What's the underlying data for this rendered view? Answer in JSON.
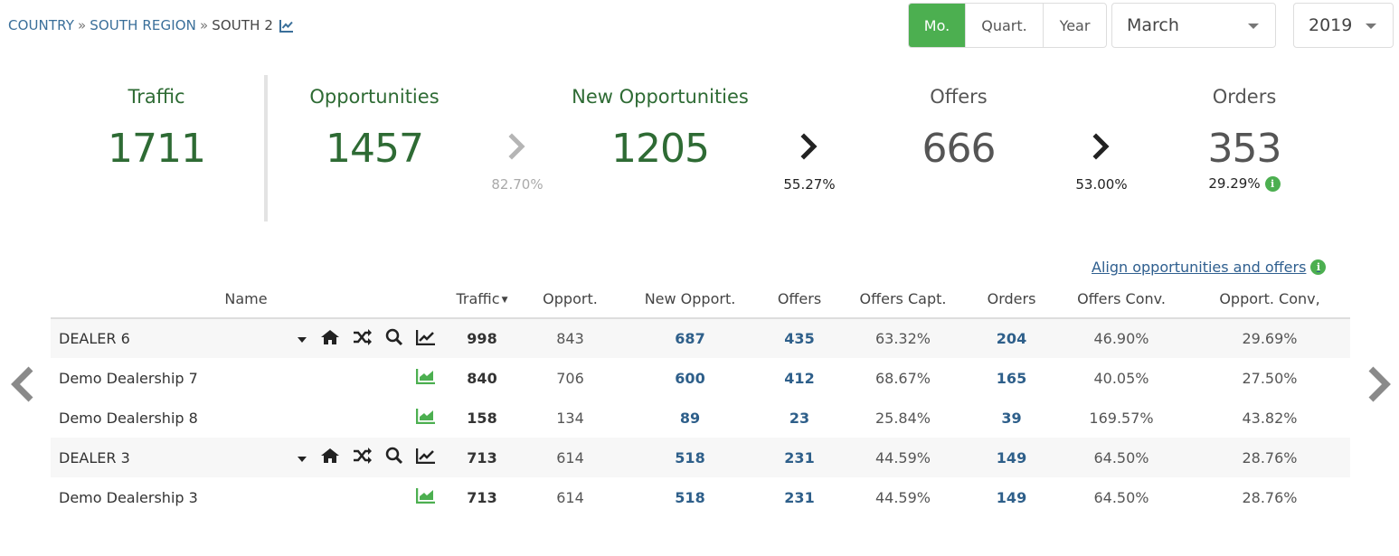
{
  "breadcrumb": {
    "items": [
      "COUNTRY",
      "SOUTH REGION"
    ],
    "separator": "»",
    "current": "SOUTH 2",
    "icon": "chart-line-icon"
  },
  "period": {
    "options": [
      "Mo.",
      "Quart.",
      "Year"
    ],
    "active": "Mo.",
    "month": "March",
    "year": "2019"
  },
  "kpis": {
    "traffic": {
      "label": "Traffic",
      "value": "1711"
    },
    "opportunities": {
      "label": "Opportunities",
      "value": "1457"
    },
    "new_opportunities": {
      "label": "New Opportunities",
      "value": "1205"
    },
    "offers": {
      "label": "Offers",
      "value": "666"
    },
    "orders": {
      "label": "Orders",
      "value": "353",
      "pct": "29.29%"
    }
  },
  "conversions": {
    "opp_to_new": "82.70%",
    "new_to_offers": "55.27%",
    "offers_to_orders": "53.00%"
  },
  "align_link": "Align opportunities and offers",
  "table": {
    "headers": [
      "Name",
      "Traffic",
      "Opport.",
      "New Opport.",
      "Offers",
      "Offers Capt.",
      "Orders",
      "Offers Conv.",
      "Opport. Conv,"
    ],
    "rows": [
      {
        "name": "DEALER 6",
        "type": "dealer",
        "traffic": "998",
        "opport": "843",
        "new_opport": "687",
        "offers": "435",
        "offers_capt": "63.32%",
        "orders": "204",
        "offers_conv": "46.90%",
        "opport_conv": "29.69%"
      },
      {
        "name": "Demo Dealership 7",
        "type": "dealership",
        "traffic": "840",
        "opport": "706",
        "new_opport": "600",
        "offers": "412",
        "offers_capt": "68.67%",
        "orders": "165",
        "offers_conv": "40.05%",
        "opport_conv": "27.50%"
      },
      {
        "name": "Demo Dealership 8",
        "type": "dealership",
        "traffic": "158",
        "opport": "134",
        "new_opport": "89",
        "offers": "23",
        "offers_capt": "25.84%",
        "orders": "39",
        "offers_conv": "169.57%",
        "opport_conv": "43.82%"
      },
      {
        "name": "DEALER 3",
        "type": "dealer",
        "traffic": "713",
        "opport": "614",
        "new_opport": "518",
        "offers": "231",
        "offers_capt": "44.59%",
        "orders": "149",
        "offers_conv": "64.50%",
        "opport_conv": "28.76%"
      },
      {
        "name": "Demo Dealership 3",
        "type": "dealership",
        "traffic": "713",
        "opport": "614",
        "new_opport": "518",
        "offers": "231",
        "offers_capt": "44.59%",
        "orders": "149",
        "offers_conv": "64.50%",
        "opport_conv": "28.76%"
      }
    ]
  },
  "colors": {
    "accent_green": "#4caf50",
    "kpi_green": "#2e6b34",
    "link_blue": "#2e5f8a",
    "breadcrumb_blue": "#3a6f9a"
  },
  "icons": {
    "dealer_row": [
      "caret-down-icon",
      "home-icon",
      "shuffle-icon",
      "search-icon",
      "chart-line-icon"
    ],
    "dealership_row": [
      "chart-area-icon"
    ],
    "nav": [
      "prev-arrow-icon",
      "next-arrow-icon"
    ]
  }
}
